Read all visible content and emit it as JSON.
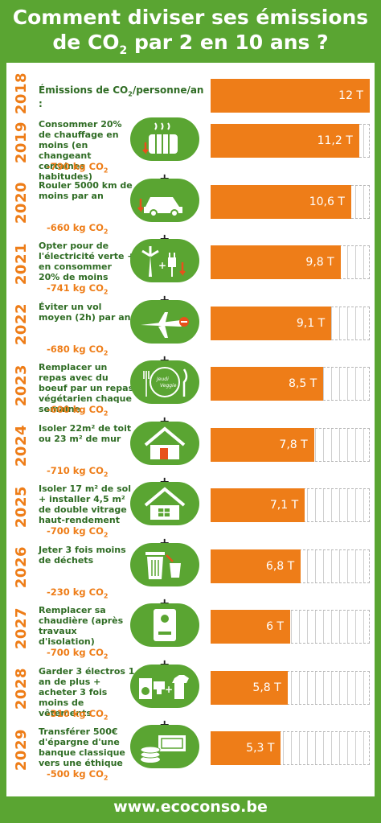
{
  "title": {
    "line1": "Comment diviser ses émissions",
    "line2a": "de CO",
    "line2sub": "2",
    "line2b": " par 2 en 10 ans ?"
  },
  "baseline": {
    "year": "2018",
    "label": "Émissions de CO",
    "label_sub": "2",
    "label_tail": "/personne/an :",
    "value": "12 T",
    "tonnes": 12
  },
  "steps": [
    {
      "year": "2019",
      "text": "Consommer 20% de chauffage en moins (en changeant certaines habitudes)",
      "saving": "-790 kg CO",
      "value": "11,2 T",
      "tonnes": 11.2,
      "icon": "radiator-icon"
    },
    {
      "year": "2020",
      "text": "Rouler 5000 km de moins par an",
      "saving": "-660 kg CO",
      "value": "10,6 T",
      "tonnes": 10.6,
      "icon": "car-icon"
    },
    {
      "year": "2021",
      "text": "Opter pour de l'électricité verte + en consommer 20% de moins",
      "saving": "-741 kg CO",
      "value": "9,8 T",
      "tonnes": 9.8,
      "icon": "wind-plug-icon"
    },
    {
      "year": "2022",
      "text": "Éviter un vol moyen (2h) par an",
      "saving": "-680 kg CO",
      "value": "9,1 T",
      "tonnes": 9.1,
      "icon": "plane-icon"
    },
    {
      "year": "2023",
      "text": "Remplacer un repas avec du boeuf par un repas végétarien chaque semaine",
      "saving": "-600 kg CO",
      "value": "8,5 T",
      "tonnes": 8.5,
      "icon": "plate-icon",
      "icon_text": "Jeudi Veggie"
    },
    {
      "year": "2024",
      "text": "Isoler 22m² de toit ou 23 m² de mur",
      "saving": "-710 kg CO",
      "value": "7,8 T",
      "tonnes": 7.8,
      "icon": "house-icon"
    },
    {
      "year": "2025",
      "text": "Isoler 17 m² de sol + installer 4,5 m² de double vitrage haut-rendement",
      "saving": "-700 kg CO",
      "value": "7,1 T",
      "tonnes": 7.1,
      "icon": "house-window-icon"
    },
    {
      "year": "2026",
      "text": "Jeter 3 fois moins de déchets",
      "saving": "-230 kg CO",
      "value": "6,8 T",
      "tonnes": 6.8,
      "icon": "trash-icon"
    },
    {
      "year": "2027",
      "text": "Remplacer sa chaudière (après travaux d'isolation)",
      "saving": "-700 kg CO",
      "value": "6 T",
      "tonnes": 6,
      "icon": "boiler-icon"
    },
    {
      "year": "2028",
      "text": "Garder 3 électros 1 an de plus + acheter 3 fois moins de vêtements",
      "saving": "-310 kg CO",
      "value": "5,8 T",
      "tonnes": 5.8,
      "icon": "appliances-icon"
    },
    {
      "year": "2029",
      "text": "Transférer 500€ d'épargne d'une banque classique vers une éthique",
      "saving": "-500 kg CO",
      "value": "5,3 T",
      "tonnes": 5.3,
      "icon": "money-icon"
    }
  ],
  "saving_sub": "2",
  "plus": "+",
  "footer": "www.ecoconso.be",
  "colors": {
    "green": "#5aa532",
    "orange": "#ee7d18",
    "dark_green": "#2f6c24"
  }
}
